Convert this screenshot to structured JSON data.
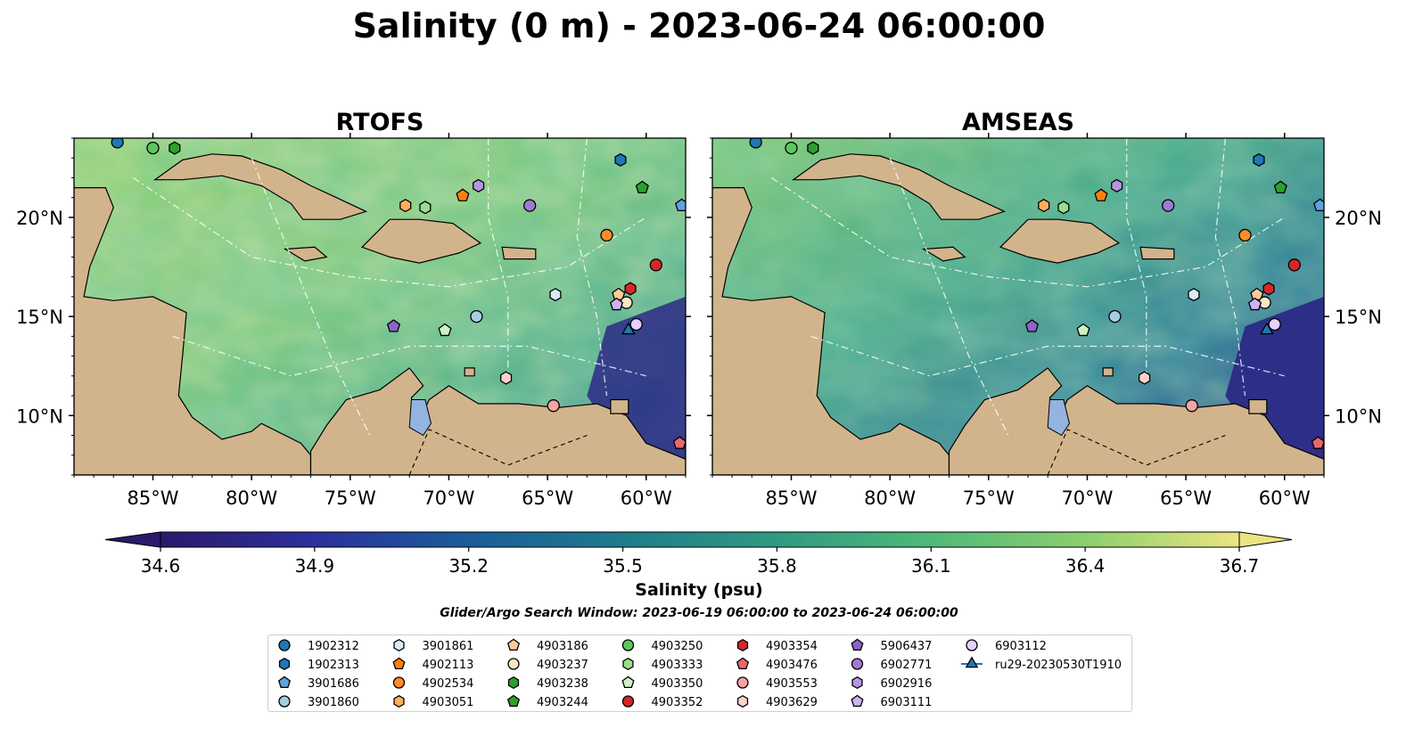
{
  "figure": {
    "title": "Salinity (0 m) - 2023-06-24 06:00:00",
    "search_window": "Glider/Argo Search Window: 2023-06-19 06:00:00 to 2023-06-24 06:00:00"
  },
  "chart_data": {
    "type": "heatmap",
    "variable": "Salinity",
    "depth": "0 m",
    "panels": [
      {
        "title": "RTOFS",
        "lon_range": [
          -89,
          -58
        ],
        "lat_range": [
          7,
          24
        ]
      },
      {
        "title": "AMSEAS",
        "lon_range": [
          -89,
          -58
        ],
        "lat_range": [
          7,
          24
        ]
      }
    ],
    "xticks": [
      -85,
      -80,
      -75,
      -70,
      -65,
      -60
    ],
    "xtick_labels": [
      "85°W",
      "80°W",
      "75°W",
      "70°W",
      "65°W",
      "60°W"
    ],
    "yticks": [
      20,
      15,
      10
    ],
    "ytick_labels": [
      "20°N",
      "15°N",
      "10°N"
    ],
    "colorbar": {
      "label": "Salinity (psu)",
      "vmin": 34.6,
      "vmax": 36.7,
      "ticks": [
        34.6,
        34.9,
        35.2,
        35.5,
        35.8,
        36.1,
        36.4,
        36.7
      ],
      "tick_labels": [
        "34.6",
        "34.9",
        "35.2",
        "35.5",
        "35.8",
        "36.1",
        "36.4",
        "36.7"
      ],
      "colormap": [
        "#2b1a6b",
        "#2c2f9c",
        "#1c5b9a",
        "#1e7a8c",
        "#2f9a82",
        "#4fb879",
        "#8dcf6e",
        "#ece481"
      ],
      "extend": "both"
    },
    "legend": {
      "placement": "bottom",
      "columns": 7,
      "entries": [
        {
          "name": "1902312",
          "marker": "circle",
          "color": "#1f77b4",
          "lon": -86.8,
          "lat": 23.8
        },
        {
          "name": "1902313",
          "marker": "hexagon",
          "color": "#1f77b4",
          "lon": -61.3,
          "lat": 22.9
        },
        {
          "name": "3901686",
          "marker": "pentagon",
          "color": "#5fa2dd",
          "lon": -58.2,
          "lat": 20.6
        },
        {
          "name": "3901860",
          "marker": "circle",
          "color": "#a6cee3",
          "lon": -68.6,
          "lat": 15.0
        },
        {
          "name": "3901861",
          "marker": "hexagon",
          "color": "#d8ecf8",
          "lon": -64.6,
          "lat": 16.1
        },
        {
          "name": "4902113",
          "marker": "pentagon",
          "color": "#ff7f0e",
          "lon": -69.3,
          "lat": 21.1
        },
        {
          "name": "4902534",
          "marker": "circle",
          "color": "#ff8c28",
          "lon": -62.0,
          "lat": 19.1
        },
        {
          "name": "4903051",
          "marker": "hexagon",
          "color": "#ffae5a",
          "lon": -72.2,
          "lat": 20.6
        },
        {
          "name": "4903186",
          "marker": "pentagon",
          "color": "#ffcc99",
          "lon": -61.4,
          "lat": 16.1
        },
        {
          "name": "4903237",
          "marker": "circle",
          "color": "#ffe4c4",
          "lon": -61.0,
          "lat": 15.7
        },
        {
          "name": "4903238",
          "marker": "hexagon",
          "color": "#2ca02c",
          "lon": -83.9,
          "lat": 23.5
        },
        {
          "name": "4903244",
          "marker": "pentagon",
          "color": "#2ca02c",
          "lon": -60.2,
          "lat": 21.5
        },
        {
          "name": "4903250",
          "marker": "circle",
          "color": "#5cc85c",
          "lon": -85.0,
          "lat": 23.5
        },
        {
          "name": "4903333",
          "marker": "hexagon",
          "color": "#98df8a",
          "lon": -71.2,
          "lat": 20.5
        },
        {
          "name": "4903350",
          "marker": "pentagon",
          "color": "#ccf2c4",
          "lon": -70.2,
          "lat": 14.3
        },
        {
          "name": "4903352",
          "marker": "circle",
          "color": "#d62728",
          "lon": -59.5,
          "lat": 17.6
        },
        {
          "name": "4903354",
          "marker": "hexagon",
          "color": "#d62728",
          "lon": -60.8,
          "lat": 16.4
        },
        {
          "name": "4903476",
          "marker": "pentagon",
          "color": "#e8676a",
          "lon": -58.3,
          "lat": 8.6
        },
        {
          "name": "4903553",
          "marker": "circle",
          "color": "#f4a3a3",
          "lon": -64.7,
          "lat": 10.5
        },
        {
          "name": "4903629",
          "marker": "hexagon",
          "color": "#ffd1cc",
          "lon": -67.1,
          "lat": 11.9
        },
        {
          "name": "5906437",
          "marker": "pentagon",
          "color": "#8c64c8",
          "lon": -72.8,
          "lat": 14.5
        },
        {
          "name": "6902771",
          "marker": "circle",
          "color": "#a07ad2",
          "lon": -65.9,
          "lat": 20.6
        },
        {
          "name": "6902916",
          "marker": "hexagon",
          "color": "#b894e6",
          "lon": -68.5,
          "lat": 21.6
        },
        {
          "name": "6903111",
          "marker": "pentagon",
          "color": "#cfb1f2",
          "lon": -61.5,
          "lat": 15.6
        },
        {
          "name": "6903112",
          "marker": "circle",
          "color": "#e5d1fb",
          "lon": -60.5,
          "lat": 14.6
        },
        {
          "name": "ru29-20230530T1910",
          "marker": "triangle-line",
          "color": "#1f77b4",
          "lon": -60.9,
          "lat": 14.3
        }
      ]
    }
  }
}
